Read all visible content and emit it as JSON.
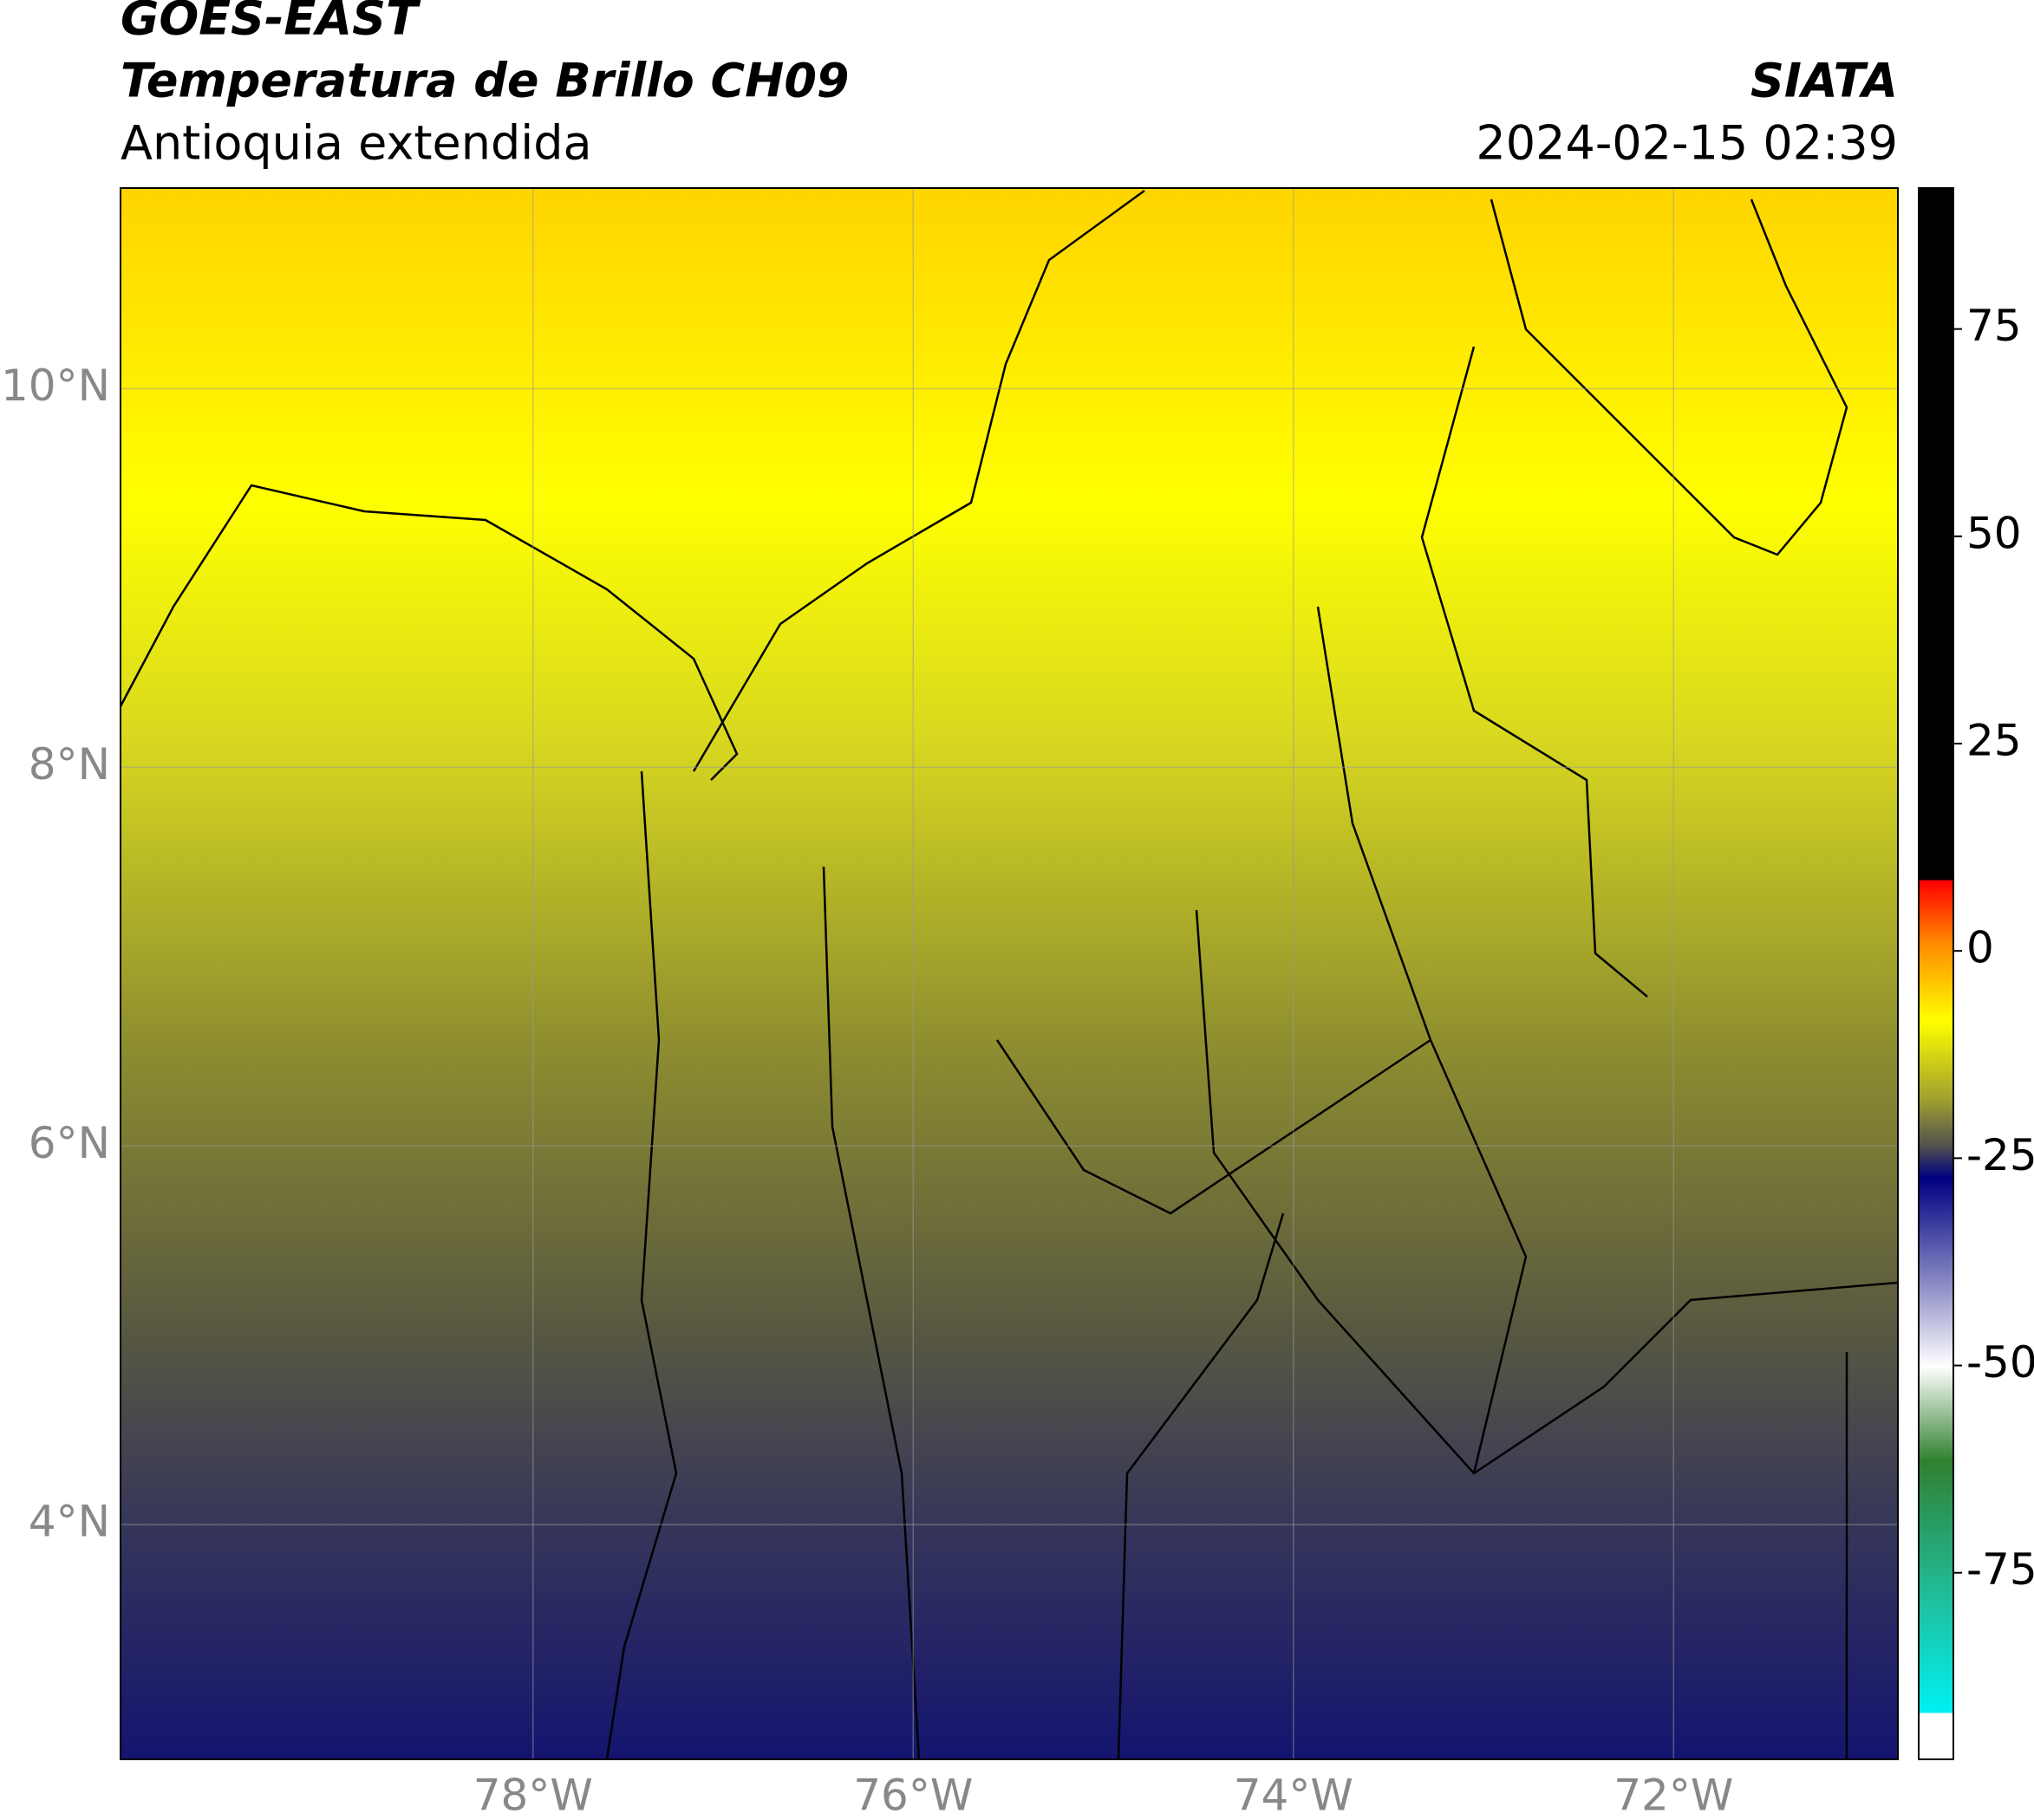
{
  "header": {
    "title": "GOES-EAST",
    "subtitle": "Temperatura de Brillo CH09",
    "region": "Antioquia extendida",
    "source": "SIATA",
    "timestamp": "2024-02-15 02:39"
  },
  "chart_data": {
    "type": "map",
    "xlim": [
      -80.17,
      -70.82
    ],
    "ylim": [
      2.76,
      11.06
    ],
    "xticks": [
      {
        "value": -78,
        "label": "78°W"
      },
      {
        "value": -76,
        "label": "76°W"
      },
      {
        "value": -74,
        "label": "74°W"
      },
      {
        "value": -72,
        "label": "72°W"
      }
    ],
    "yticks": [
      {
        "value": 4,
        "label": "4°N"
      },
      {
        "value": 6,
        "label": "6°N"
      },
      {
        "value": 8,
        "label": "8°N"
      },
      {
        "value": 10,
        "label": "10°N"
      }
    ],
    "grid": true,
    "colorbar": {
      "lim": [
        -97.5,
        92
      ],
      "ticks": [
        -75,
        -50,
        -25,
        0,
        25,
        50,
        75
      ]
    }
  }
}
